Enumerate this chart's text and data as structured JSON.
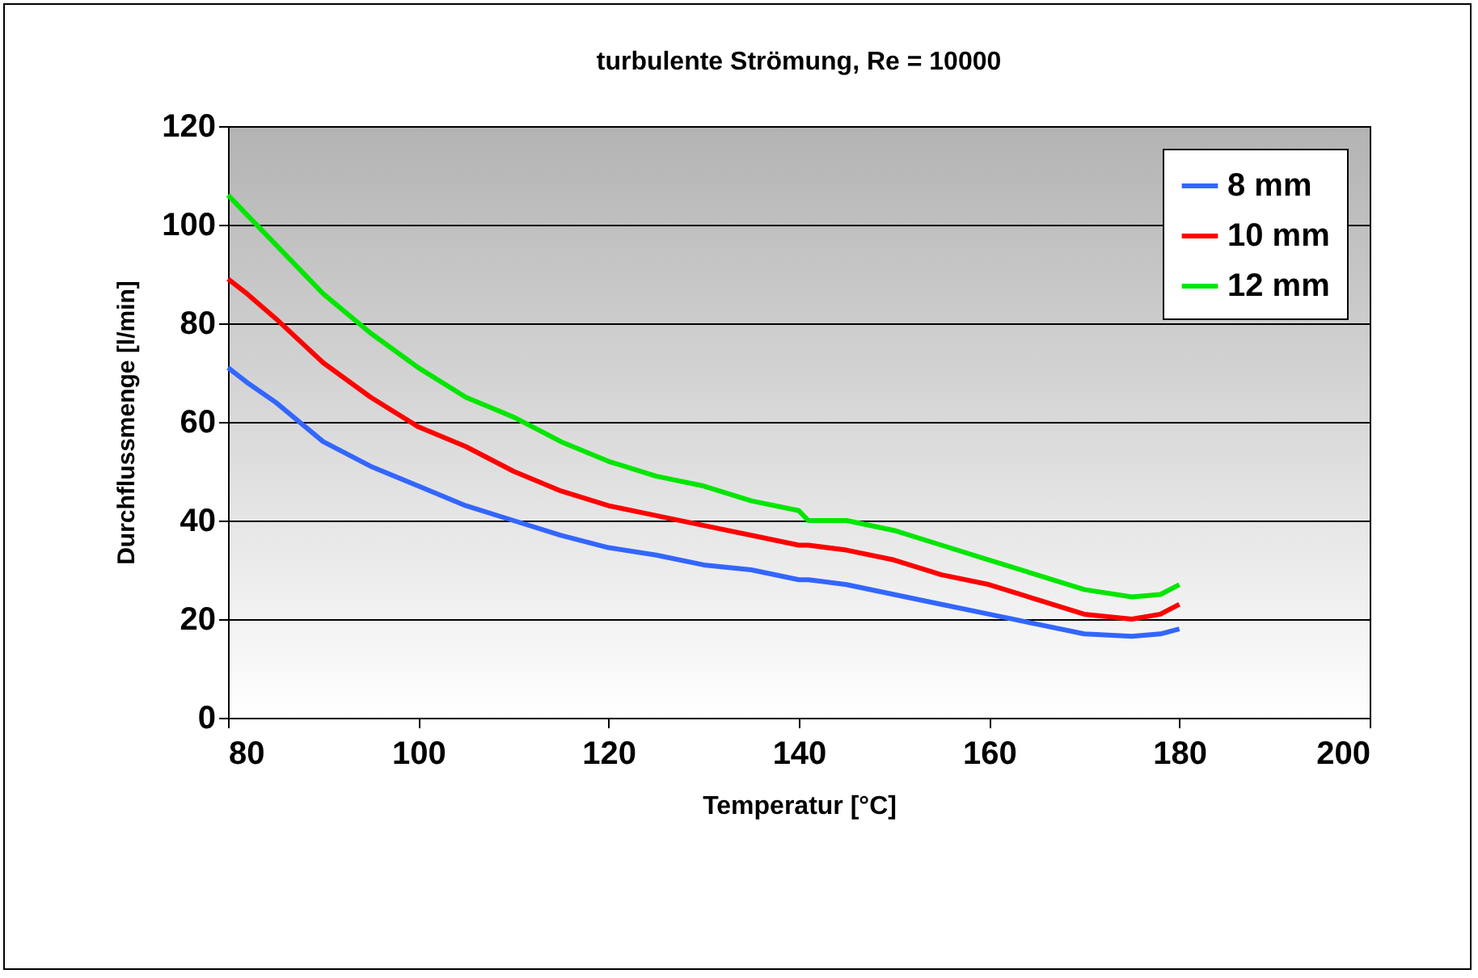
{
  "chart_data": {
    "type": "line",
    "title": "turbulente Strömung, Re = 10000",
    "xlabel": "Temperatur [°C]",
    "ylabel": "Durchflussmenge [l/min]",
    "x": [
      80,
      82,
      85,
      90,
      95,
      100,
      105,
      110,
      115,
      120,
      125,
      130,
      135,
      140,
      141,
      145,
      150,
      155,
      160,
      165,
      170,
      175,
      178,
      180
    ],
    "series": [
      {
        "name": "8 mm",
        "color": "#3366ff",
        "values": [
          71,
          68,
          64,
          56,
          51,
          47,
          43,
          40,
          37,
          34.5,
          33,
          31,
          30,
          28,
          28,
          27,
          25,
          23,
          21,
          19,
          17,
          16.5,
          17,
          18
        ]
      },
      {
        "name": "10 mm",
        "color": "#ff0000",
        "values": [
          89,
          86,
          81,
          72,
          65,
          59,
          55,
          50,
          46,
          43,
          41,
          39,
          37,
          35,
          35,
          34,
          32,
          29,
          27,
          24,
          21,
          20,
          21,
          23
        ]
      },
      {
        "name": "12 mm",
        "color": "#00e600",
        "values": [
          106,
          102,
          96,
          86,
          78,
          71,
          65,
          61,
          56,
          52,
          49,
          47,
          44,
          42,
          40,
          40,
          38,
          35,
          32,
          29,
          26,
          24.5,
          25,
          27
        ]
      }
    ],
    "xlim": [
      80,
      200
    ],
    "xticks": [
      80,
      100,
      120,
      140,
      160,
      180,
      200
    ],
    "ylim": [
      0,
      120
    ],
    "yticks": [
      0,
      20,
      40,
      60,
      80,
      100,
      120
    ],
    "grid": "y",
    "legend": "top right",
    "marker": "none",
    "line_style": "solid"
  }
}
